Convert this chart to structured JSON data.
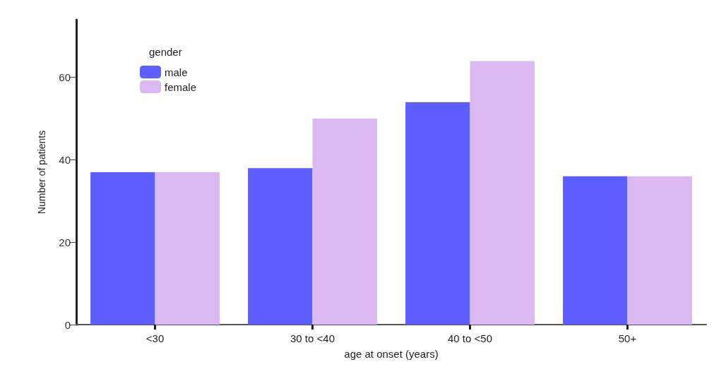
{
  "chart_data": {
    "type": "bar",
    "xlabel": "age at onset (years)",
    "ylabel": "Number of patients",
    "legend_title": "gender",
    "legend": "top left",
    "categories": [
      "<30",
      "30 to <40",
      "40 to <50",
      "50+"
    ],
    "series": [
      {
        "name": "male",
        "color": "#5c5eff",
        "values": [
          37,
          38,
          54,
          36
        ]
      },
      {
        "name": "female",
        "color": "#dcb8f0",
        "values": [
          37,
          50,
          64,
          36
        ]
      }
    ],
    "ylim": [
      0,
      74
    ],
    "yticks": [
      0,
      20,
      40,
      60
    ],
    "grid": false
  }
}
